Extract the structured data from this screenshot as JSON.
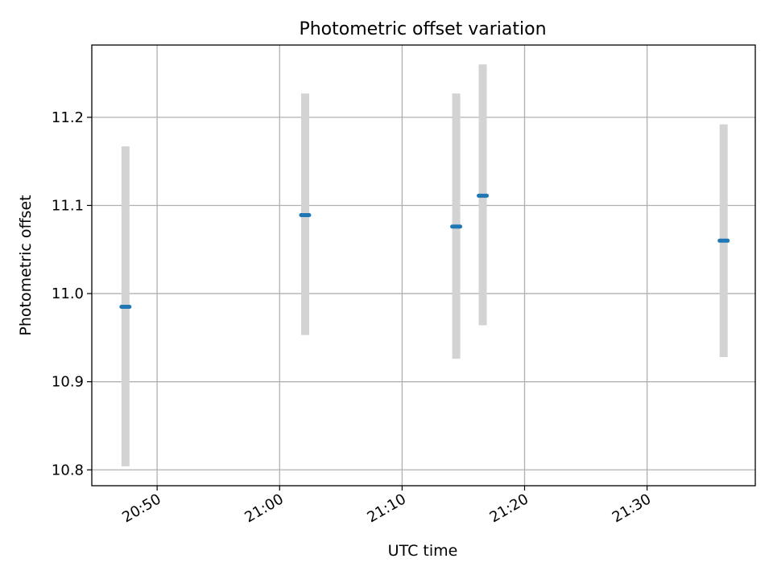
{
  "chart_data": {
    "type": "scatter",
    "title": "Photometric offset variation",
    "xlabel": "UTC time",
    "ylabel": "Photometric offset",
    "grid": true,
    "xlim": [
      "20:44:40",
      "21:38:50"
    ],
    "ylim": [
      10.782,
      11.282
    ],
    "x_ticks": [
      "20:50",
      "21:00",
      "21:10",
      "21:20",
      "21:30"
    ],
    "y_ticks": [
      "10.8",
      "10.9",
      "11.0",
      "11.1",
      "11.2"
    ],
    "series": [
      {
        "marker": "horizontal-dash",
        "color": "#1f77b4",
        "errorbar_color": "#d3d3d3",
        "points": [
          {
            "x": "20:47:25",
            "y": 10.985,
            "ylo": 10.804,
            "yhi": 11.167
          },
          {
            "x": "21:02:05",
            "y": 11.089,
            "ylo": 10.953,
            "yhi": 11.227
          },
          {
            "x": "21:14:25",
            "y": 11.076,
            "ylo": 10.926,
            "yhi": 11.227
          },
          {
            "x": "21:16:35",
            "y": 11.111,
            "ylo": 10.964,
            "yhi": 11.26
          },
          {
            "x": "21:36:15",
            "y": 11.06,
            "ylo": 10.928,
            "yhi": 11.192
          }
        ]
      }
    ]
  }
}
